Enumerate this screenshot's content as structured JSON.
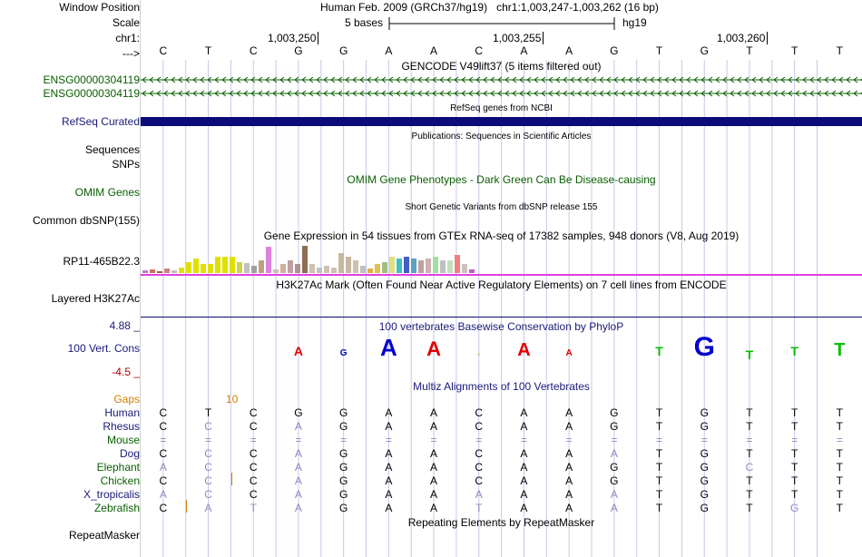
{
  "header": {
    "window_position_label": "Window Position",
    "scale_label": "Scale",
    "chr_label": "chr1:",
    "arrow_label": "--->",
    "assembly": "Human Feb. 2009 (GRCh37/hg19)",
    "position": "chr1:1,003,247-1,003,262 (16 bp)",
    "scale_text": "5 bases",
    "scale_db": "hg19",
    "ticks": [
      "1,003,250",
      "1,003,255",
      "1,003,260"
    ]
  },
  "sequence": [
    "C",
    "T",
    "C",
    "G",
    "G",
    "A",
    "A",
    "C",
    "A",
    "A",
    "G",
    "T",
    "G",
    "T",
    "T",
    "T"
  ],
  "tracks": {
    "gencode_title": "GENCODE V49lift37 (5 items filtered out)",
    "gencode_items": [
      "ENSG00000304119",
      "ENSG00000304119"
    ],
    "refseq_title": "RefSeq genes from NCBI",
    "refseq_label": "RefSeq Curated",
    "publications_title": "Publications: Sequences in Scientific Articles",
    "sequences_label": "Sequences",
    "snps_label": "SNPs",
    "omim_title": "OMIM Gene Phenotypes - Dark Green Can Be Disease-causing",
    "omim_label": "OMIM Genes",
    "dbsnp_title": "Short Genetic Variants from dbSNP release 155",
    "dbsnp_label": "Common dbSNP(155)",
    "gtex_title": "Gene Expression in 54 tissues from GTEx RNA-seq of 17382 samples, 948 donors (V8, Aug 2019)",
    "gtex_label": "RP11-465B22.3",
    "h3k27ac_title": "H3K27Ac Mark (Often Found Near Active Regulatory Elements) on 7 cell lines from ENCODE",
    "h3k27ac_label": "Layered H3K27Ac",
    "cons_title": "100 vertebrates Basewise Conservation by PhyloP",
    "cons_label": "100 Vert. Cons",
    "cons_max": "4.88 _",
    "cons_min": "-4.5 _",
    "multiz_title": "Multiz Alignments of 100 Vertebrates",
    "gaps_label": "Gaps",
    "gaps_value": "10",
    "repeat_title": "Repeating Elements by RepeatMasker",
    "repeat_label": "RepeatMasker"
  },
  "alignment": [
    {
      "species": "Human",
      "bases": [
        "C",
        "T",
        "C",
        "G",
        "G",
        "A",
        "A",
        "C",
        "A",
        "A",
        "G",
        "T",
        "G",
        "T",
        "T",
        "T"
      ]
    },
    {
      "species": "Rhesus",
      "bases": [
        "C",
        "C",
        "C",
        "A",
        "G",
        "A",
        "A",
        "C",
        "A",
        "A",
        "G",
        "T",
        "G",
        "T",
        "T",
        "T"
      ]
    },
    {
      "species": "Mouse",
      "bases": [
        "=",
        "=",
        "=",
        "=",
        "=",
        "=",
        "=",
        "=",
        "=",
        "=",
        "=",
        "=",
        "=",
        "=",
        "=",
        "="
      ]
    },
    {
      "species": "Dog",
      "bases": [
        "C",
        "C",
        "C",
        "A",
        "G",
        "A",
        "A",
        "C",
        "A",
        "A",
        "A",
        "T",
        "G",
        "T",
        "T",
        "T"
      ]
    },
    {
      "species": "Elephant",
      "bases": [
        "A",
        "C",
        "C",
        "A",
        "G",
        "A",
        "A",
        "C",
        "A",
        "A",
        "G",
        "T",
        "G",
        "C",
        "T",
        "T"
      ]
    },
    {
      "species": "Chicken",
      "bases": [
        "C",
        "C",
        "C",
        "A",
        "G",
        "A",
        "A",
        "C",
        "A",
        "A",
        "G",
        "T",
        "G",
        "T",
        "T",
        "T"
      ]
    },
    {
      "species": "X_tropicalis",
      "bases": [
        "A",
        "C",
        "C",
        "A",
        "G",
        "A",
        "A",
        "A",
        "A",
        "A",
        "A",
        "T",
        "G",
        "T",
        "T",
        "T"
      ]
    },
    {
      "species": "Zebrafish",
      "bases": [
        "C",
        "A",
        "T",
        "A",
        "G",
        "A",
        "A",
        "T",
        "A",
        "A",
        "A",
        "T",
        "G",
        "T",
        "G",
        "T"
      ]
    }
  ],
  "colors": {
    "gencode": "#0a5f00",
    "refseq": "#0c0c78",
    "h3k27ac_line": "#e040e0",
    "cons_label": "#1a1a7a",
    "gaps": "#d08000",
    "mismatch": "#8c8cbf",
    "gridline": "#c8c8e8",
    "base_A": "#e00000",
    "base_C": "#0000d0",
    "base_G": "#0000d0",
    "base_T": "#00c000"
  }
}
